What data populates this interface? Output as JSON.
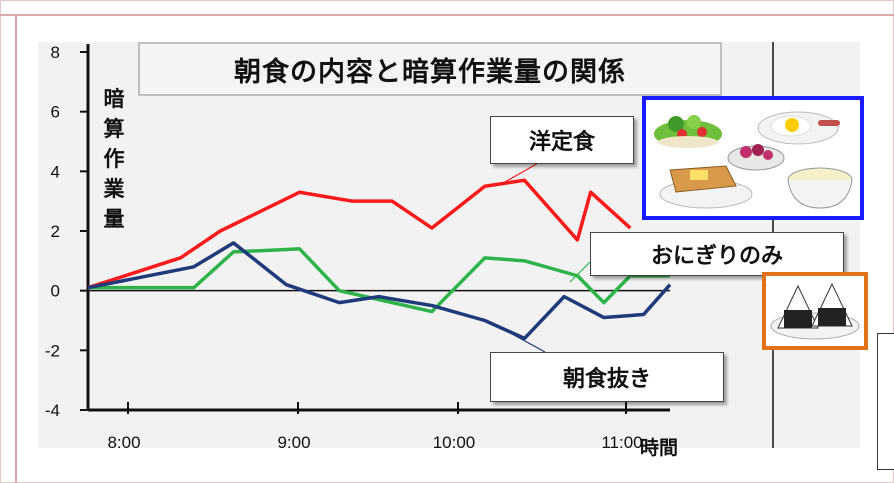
{
  "chart_data": {
    "type": "line",
    "title": "朝食の内容と暗算作業量の関係",
    "ylabel": "暗算作業量",
    "xlabel": "時間",
    "y_ticks": [
      "8",
      "6",
      "4",
      "2",
      "0",
      "-2",
      "-4"
    ],
    "x_ticks": [
      "8:00",
      "9:00",
      "10:00",
      "11:00"
    ],
    "ylim": [
      -4,
      8
    ],
    "x_range_minutes": [
      480,
      720
    ],
    "series": [
      {
        "name": "洋定食",
        "color": "#ff1a1a",
        "x": [
          480,
          515,
          530,
          560,
          580,
          595,
          610,
          630,
          645,
          665,
          670,
          685
        ],
        "y": [
          0.1,
          1.1,
          2.0,
          3.3,
          3.0,
          3.0,
          2.1,
          3.5,
          3.7,
          1.7,
          3.3,
          2.1
        ]
      },
      {
        "name": "おにぎりのみ",
        "color": "#2db34a",
        "x": [
          480,
          520,
          535,
          560,
          575,
          590,
          610,
          630,
          645,
          665,
          675,
          685,
          700
        ],
        "y": [
          0.1,
          0.1,
          1.3,
          1.4,
          0.0,
          -0.3,
          -0.7,
          1.1,
          1.0,
          0.5,
          -0.4,
          0.5,
          0.5
        ]
      },
      {
        "name": "朝食抜き",
        "color": "#1f3a7a",
        "x": [
          480,
          520,
          535,
          555,
          575,
          590,
          610,
          630,
          645,
          660,
          675,
          690,
          700
        ],
        "y": [
          0.1,
          0.8,
          1.6,
          0.2,
          -0.4,
          -0.2,
          -0.5,
          -1.0,
          -1.6,
          -0.2,
          -0.9,
          -0.8,
          0.2
        ]
      }
    ]
  },
  "callouts": {
    "western": "洋定食",
    "onigiri": "おにぎりのみ",
    "skip": "朝食抜き"
  },
  "images": {
    "western_meal": "western-breakfast-illustration",
    "onigiri": "onigiri-plate-illustration"
  },
  "colors": {
    "western_frame": "#1a1aff",
    "onigiri_frame": "#e0731a"
  }
}
